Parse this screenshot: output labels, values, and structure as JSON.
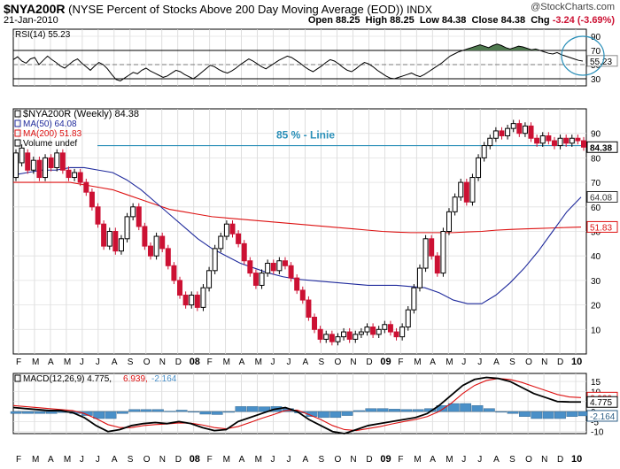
{
  "header": {
    "symbol": "$NYA200R",
    "description": "(NYSE Percent of Stocks Above 200 Day Moving Average (EOD))",
    "exchange": "INDX",
    "date": "21-Jan-2010",
    "logo": "@StockCharts.com",
    "open_label": "Open",
    "open": "88.25",
    "high_label": "High",
    "high": "88.25",
    "low_label": "Low",
    "low": "84.38",
    "close_label": "Close",
    "close": "84.38",
    "chg_label": "Chg",
    "chg": "-3.24 (-3.69%)"
  },
  "colors": {
    "up": "#000000",
    "down": "#cc1133",
    "ma50": "#1f2a9c",
    "ma200": "#dd1111",
    "hist": "#4a90c8",
    "cyan": "#2a8fb8"
  },
  "chart_data": [
    {
      "type": "line",
      "name": "rsi",
      "legend": "RSI(14) 55.23",
      "ylim": [
        20,
        100
      ],
      "ticks": [
        30,
        50,
        70,
        90
      ],
      "value_label": "55.23",
      "overbought": 70,
      "oversold": 30,
      "values": [
        57,
        61,
        55,
        52,
        58,
        60,
        50,
        56,
        62,
        57,
        53,
        48,
        45,
        50,
        55,
        58,
        52,
        47,
        42,
        48,
        53,
        50,
        44,
        36,
        29,
        27,
        31,
        35,
        39,
        37,
        42,
        45,
        41,
        38,
        35,
        32,
        34,
        38,
        42,
        40,
        36,
        33,
        30,
        34,
        39,
        44,
        49,
        47,
        43,
        40,
        38,
        41,
        45,
        50,
        54,
        58,
        55,
        51,
        47,
        44,
        48,
        52,
        56,
        59,
        62,
        60,
        56,
        52,
        47,
        43,
        40,
        44,
        48,
        53,
        57,
        55,
        51,
        46,
        42,
        40,
        44,
        49,
        53,
        51,
        47,
        42,
        38,
        34,
        31,
        30,
        32,
        34,
        36,
        38,
        35,
        33,
        36,
        40,
        44,
        48,
        52,
        57,
        62,
        65,
        68,
        70,
        72,
        74,
        76,
        78,
        76,
        74,
        77,
        79,
        77,
        74,
        72,
        74,
        76,
        75,
        73,
        71,
        72,
        70,
        68,
        66,
        65,
        67,
        64,
        62,
        60,
        58,
        56,
        55
      ]
    },
    {
      "type": "candlestick",
      "name": "price",
      "legend": "$NYA200R (Weekly) 84.38",
      "ylim": [
        0,
        100
      ],
      "ticks": [
        10,
        20,
        30,
        40,
        50,
        60,
        70,
        80,
        90
      ],
      "annotation": "85 % - Linie",
      "annotation_level": 85,
      "last_value": "84.38",
      "ma50": {
        "legend": "MA(50) 64.08",
        "value": "64.08",
        "values": [
          73,
          74,
          75,
          75,
          76,
          76,
          75,
          74,
          71,
          67,
          62,
          57,
          52,
          47,
          43,
          40,
          37,
          35,
          33,
          31.5,
          30.5,
          30,
          29.5,
          29,
          28.5,
          28,
          28,
          28,
          27.5,
          27,
          25,
          22,
          20.5,
          20.5,
          24,
          29,
          35,
          42,
          50,
          58,
          64
        ]
      },
      "ma200": {
        "legend": "MA(200) 51.83",
        "value": "51.83",
        "values": [
          70,
          70,
          70,
          70,
          70,
          69,
          68,
          67,
          65,
          63,
          61,
          59,
          58,
          57,
          56,
          55.5,
          55,
          54.5,
          54,
          53.5,
          53,
          52.5,
          52,
          51.5,
          51,
          50.5,
          50,
          49.7,
          49.5,
          49.5,
          49.5,
          49.5,
          49.8,
          50,
          50.5,
          50.8,
          51,
          51.2,
          51.4,
          51.6,
          51.8
        ]
      },
      "volume_label": "Volume undef",
      "values": [
        [
          72,
          82
        ],
        [
          78,
          84
        ],
        [
          82,
          75
        ],
        [
          75,
          79
        ],
        [
          79,
          72
        ],
        [
          72,
          80
        ],
        [
          80,
          76
        ],
        [
          76,
          82
        ],
        [
          82,
          75
        ],
        [
          75,
          72
        ],
        [
          72,
          74
        ],
        [
          74,
          70
        ],
        [
          70,
          66
        ],
        [
          66,
          60
        ],
        [
          60,
          53
        ],
        [
          53,
          44
        ],
        [
          44,
          50
        ],
        [
          50,
          42
        ],
        [
          42,
          47
        ],
        [
          47,
          56
        ],
        [
          56,
          60
        ],
        [
          60,
          52
        ],
        [
          52,
          44
        ],
        [
          44,
          40
        ],
        [
          40,
          48
        ],
        [
          48,
          43
        ],
        [
          43,
          36
        ],
        [
          36,
          30
        ],
        [
          30,
          24
        ],
        [
          24,
          20
        ],
        [
          20,
          24
        ],
        [
          24,
          19
        ],
        [
          19,
          27
        ],
        [
          27,
          34
        ],
        [
          34,
          43
        ],
        [
          43,
          48
        ],
        [
          48,
          53
        ],
        [
          53,
          49
        ],
        [
          49,
          45
        ],
        [
          45,
          38
        ],
        [
          38,
          33
        ],
        [
          33,
          28
        ],
        [
          28,
          33
        ],
        [
          33,
          37
        ],
        [
          37,
          34
        ],
        [
          34,
          38
        ],
        [
          38,
          36
        ],
        [
          36,
          31
        ],
        [
          31,
          26
        ],
        [
          26,
          22
        ],
        [
          22,
          15
        ],
        [
          15,
          10
        ],
        [
          10,
          6
        ],
        [
          6,
          8
        ],
        [
          8,
          5
        ],
        [
          5,
          7
        ],
        [
          7,
          9
        ],
        [
          9,
          6
        ],
        [
          6,
          8
        ],
        [
          8,
          9
        ],
        [
          9,
          11
        ],
        [
          11,
          8
        ],
        [
          8,
          10
        ],
        [
          10,
          12
        ],
        [
          12,
          9
        ],
        [
          9,
          7
        ],
        [
          7,
          11
        ],
        [
          11,
          18
        ],
        [
          18,
          27
        ],
        [
          27,
          35
        ],
        [
          35,
          47
        ],
        [
          47,
          40
        ],
        [
          40,
          33
        ],
        [
          33,
          50
        ],
        [
          50,
          58
        ],
        [
          58,
          64
        ],
        [
          64,
          70
        ],
        [
          70,
          62
        ],
        [
          62,
          72
        ],
        [
          72,
          80
        ],
        [
          80,
          85
        ],
        [
          85,
          88
        ],
        [
          88,
          91
        ],
        [
          91,
          89
        ],
        [
          89,
          92
        ],
        [
          92,
          94
        ],
        [
          94,
          90
        ],
        [
          90,
          93
        ],
        [
          93,
          88
        ],
        [
          88,
          86
        ],
        [
          86,
          89
        ],
        [
          89,
          87
        ],
        [
          87,
          85
        ],
        [
          85,
          88
        ],
        [
          88,
          86
        ],
        [
          86,
          88
        ],
        [
          88,
          87
        ],
        [
          87,
          84.38
        ]
      ]
    },
    {
      "type": "line",
      "name": "macd",
      "legend_label": "MACD(12,26,9)",
      "legend_macd": "4.775",
      "legend_signal": "6.939",
      "legend_hist": "-2.164",
      "ylim": [
        -11,
        19
      ],
      "ticks": [
        -10,
        -5,
        0,
        5,
        10,
        15
      ],
      "macd": {
        "name": "MACD",
        "value": "4.775",
        "values": [
          2,
          1.5,
          1,
          0.5,
          0.5,
          -0.5,
          -3,
          -7,
          -10,
          -9,
          -7,
          -6,
          -5.5,
          -6,
          -5,
          -6,
          -8,
          -9.5,
          -9,
          -5,
          -3,
          -1,
          1,
          2,
          0,
          -4,
          -7,
          -10,
          -11,
          -9,
          -7,
          -6,
          -5,
          -4,
          -3,
          -1,
          3,
          8,
          13,
          16,
          17,
          16.5,
          15,
          12,
          9,
          7,
          5,
          4.8,
          4.775
        ]
      },
      "signal": {
        "name": "Signal",
        "value": "6.939",
        "values": [
          3,
          2.5,
          2,
          1.5,
          1,
          0.5,
          -1,
          -3.5,
          -6.5,
          -8,
          -8,
          -7,
          -6.5,
          -6.2,
          -5.7,
          -5.8,
          -6.7,
          -8,
          -8.6,
          -7.5,
          -5.5,
          -3.4,
          -1.5,
          0.5,
          0.7,
          -1.5,
          -4,
          -7,
          -9,
          -9.5,
          -8.5,
          -7.5,
          -6.2,
          -5,
          -4,
          -2.5,
          0,
          4,
          9,
          13,
          15.5,
          16.5,
          16,
          14.5,
          12.5,
          10.5,
          8.5,
          7.3,
          6.939
        ]
      },
      "histogram": {
        "name": "Histogram",
        "value": "-2.164"
      }
    }
  ],
  "x_axis_labels": [
    "F",
    "M",
    "A",
    "M",
    "J",
    "J",
    "A",
    "S",
    "O",
    "N",
    "D",
    "08",
    "F",
    "M",
    "A",
    "M",
    "J",
    "J",
    "A",
    "S",
    "O",
    "N",
    "D",
    "09",
    "F",
    "M",
    "A",
    "M",
    "J",
    "J",
    "A",
    "S",
    "O",
    "N",
    "D",
    "10"
  ]
}
